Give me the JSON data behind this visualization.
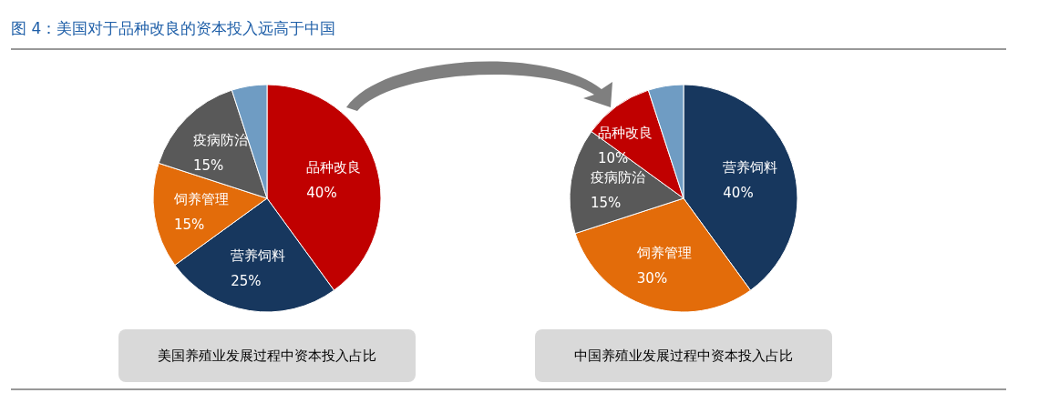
{
  "chart_data": [
    {
      "type": "pie",
      "title": "图 4：美国对于品种改良的资本投入远高于中国",
      "xlabel": "美国养殖业发展过程中资本投入占比",
      "categories": [
        "品种改良",
        "营养饲料",
        "饲养管理",
        "疫病防治",
        null
      ],
      "values": [
        40,
        25,
        15,
        15,
        5
      ],
      "colors": [
        "#c00000",
        "#17375e",
        "#e36c0a",
        "#595959",
        "#6f9cc3"
      ],
      "value_labels": [
        "40%",
        "25%",
        "15%",
        "15%",
        null
      ]
    },
    {
      "type": "pie",
      "xlabel": "中国养殖业发展过程中资本投入占比",
      "categories": [
        "营养饲料",
        "饲养管理",
        "疫病防治",
        "品种改良",
        null
      ],
      "values": [
        40,
        30,
        15,
        10,
        5
      ],
      "colors": [
        "#17375e",
        "#e36c0a",
        "#595959",
        "#c00000",
        "#6f9cc3"
      ],
      "value_labels": [
        "40%",
        "30%",
        "15%",
        "10%",
        null
      ]
    }
  ]
}
